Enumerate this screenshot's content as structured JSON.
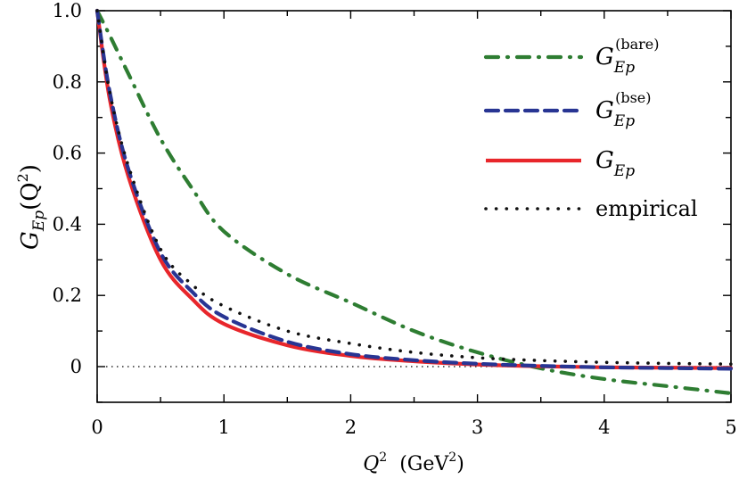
{
  "chart_data": {
    "type": "line",
    "title": "",
    "xlabel": "Q^2  (GeV^2)",
    "ylabel": "G_Ep(Q^2)",
    "xlim": [
      0,
      5
    ],
    "ylim": [
      -0.1,
      1.0
    ],
    "x_ticks": [
      "0",
      "1",
      "2",
      "3",
      "4",
      "5"
    ],
    "y_ticks": [
      "0",
      "0.2",
      "0.4",
      "0.6",
      "0.8",
      "1.0"
    ],
    "grid": false,
    "legend_position": "upper right",
    "zero_reference_line": {
      "y": 0,
      "style": "dotted",
      "color": "#000000"
    },
    "x": [
      0,
      0.1,
      0.25,
      0.5,
      0.75,
      1.0,
      1.5,
      2.0,
      2.5,
      3.0,
      3.5,
      4.0,
      4.5,
      5.0
    ],
    "series": [
      {
        "name": "G_Ep^(bare)",
        "label_main": "G",
        "label_sub": "Ep",
        "label_sup": "(bare)",
        "color": "#2e7d32",
        "style": "dash-dot",
        "values": [
          1.0,
          0.93,
          0.82,
          0.64,
          0.5,
          0.38,
          0.26,
          0.18,
          0.1,
          0.04,
          -0.005,
          -0.035,
          -0.055,
          -0.075
        ]
      },
      {
        "name": "G_Ep^(bse)",
        "label_main": "G",
        "label_sub": "Ep",
        "label_sup": "(bse)",
        "color": "#283593",
        "style": "dashed",
        "values": [
          1.0,
          0.77,
          0.55,
          0.32,
          0.21,
          0.14,
          0.07,
          0.035,
          0.018,
          0.008,
          0.002,
          -0.002,
          -0.004,
          -0.006
        ]
      },
      {
        "name": "G_Ep",
        "label_main": "G",
        "label_sub": "Ep",
        "label_sup": "",
        "color": "#e8262b",
        "style": "solid",
        "values": [
          1.0,
          0.75,
          0.53,
          0.3,
          0.19,
          0.12,
          0.06,
          0.03,
          0.015,
          0.006,
          0.001,
          -0.002,
          -0.003,
          -0.004
        ]
      },
      {
        "name": "empirical",
        "label_main": "empirical",
        "label_sub": "",
        "label_sup": "",
        "color": "#111111",
        "style": "dotted",
        "values": [
          1.0,
          0.77,
          0.56,
          0.33,
          0.23,
          0.17,
          0.1,
          0.065,
          0.04,
          0.025,
          0.017,
          0.012,
          0.009,
          0.007
        ]
      }
    ]
  },
  "axes": {
    "x_title_main": "Q",
    "x_title_sup": "2",
    "x_title_units_pre": "(GeV",
    "x_title_units_sup": "2",
    "x_title_units_post": ")",
    "y_title_main": "G",
    "y_title_sub": "Ep",
    "y_title_arg_pre": "(Q",
    "y_title_arg_sup": "2",
    "y_title_arg_post": ")"
  }
}
